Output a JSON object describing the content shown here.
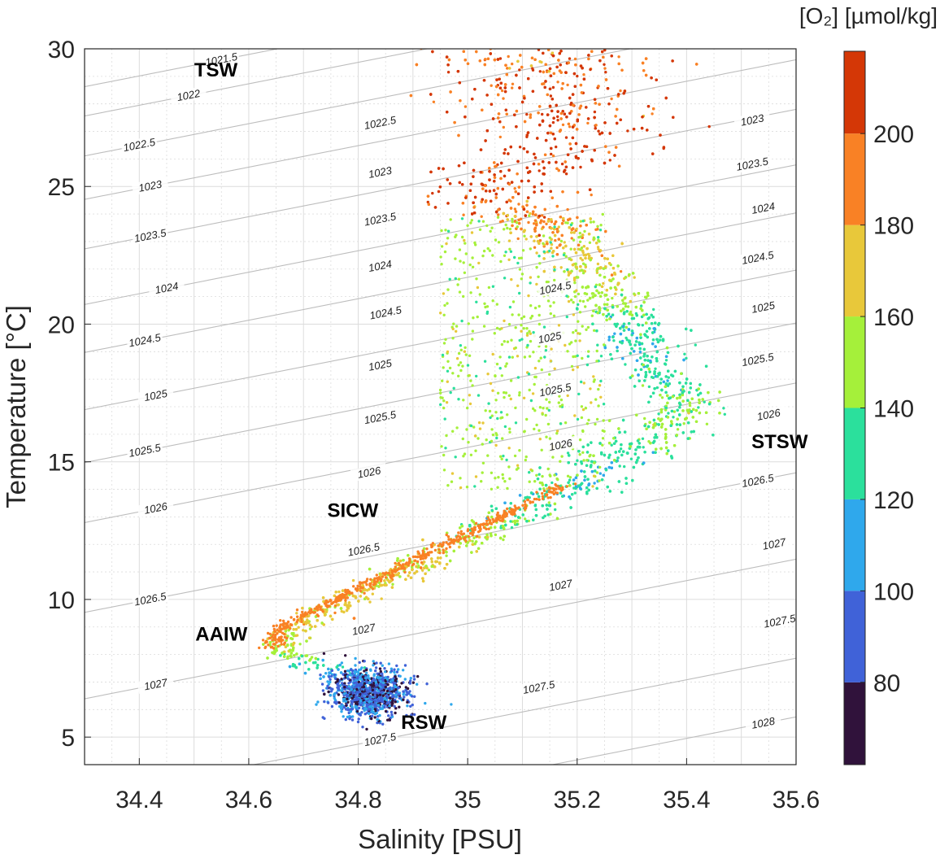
{
  "chart_data": {
    "type": "scatter",
    "xlabel": "Salinity [PSU]",
    "ylabel": "Temperature [°C]",
    "xlim": [
      34.3,
      35.6
    ],
    "ylim": [
      4,
      30
    ],
    "xticks": [
      "34.4",
      "34.6",
      "34.8",
      "35",
      "35.2",
      "35.4",
      "35.6"
    ],
    "yticks": [
      "5",
      "10",
      "15",
      "20",
      "25",
      "30"
    ],
    "grid": true,
    "colorbar": {
      "title": "[O₂] [µmol/kg]",
      "min": 62,
      "max": 218,
      "ticks": [
        "80",
        "100",
        "120",
        "140",
        "160",
        "180",
        "200"
      ],
      "levels": [
        {
          "from": 62,
          "to": 80,
          "color": "#30123b"
        },
        {
          "from": 80,
          "to": 100,
          "color": "#4062d8"
        },
        {
          "from": 100,
          "to": 120,
          "color": "#2fa8ec"
        },
        {
          "from": 120,
          "to": 140,
          "color": "#2be09c"
        },
        {
          "from": 140,
          "to": 160,
          "color": "#a5f03a"
        },
        {
          "from": 160,
          "to": 180,
          "color": "#e8c83a"
        },
        {
          "from": 180,
          "to": 200,
          "color": "#f98125"
        },
        {
          "from": 200,
          "to": 218,
          "color": "#d43706"
        }
      ]
    },
    "density_contours": [
      {
        "label": "1021.5",
        "at": [
          34.55,
          29.6
        ]
      },
      {
        "label": "1022",
        "at": [
          34.49,
          28.3
        ],
        "label2_at": [
          35.27,
          29.8
        ]
      },
      {
        "label": "1022.5",
        "at": [
          34.4,
          26.5
        ],
        "label2_at": [
          34.84,
          27.3
        ]
      },
      {
        "label": "1023",
        "at": [
          34.42,
          25.0
        ],
        "label2_at": [
          34.84,
          25.5
        ],
        "label3_at": [
          35.52,
          27.4
        ]
      },
      {
        "label": "1023.5",
        "at": [
          34.42,
          23.2
        ],
        "label2_at": [
          34.84,
          23.8
        ],
        "label3_at": [
          35.52,
          25.8
        ]
      },
      {
        "label": "1024",
        "at": [
          34.45,
          21.3
        ],
        "label2_at": [
          34.84,
          22.1
        ],
        "label3_at": [
          35.54,
          24.2
        ]
      },
      {
        "label": "1024.5",
        "at": [
          34.41,
          19.4
        ],
        "label2_at": [
          34.85,
          20.4
        ],
        "label3_at": [
          35.16,
          21.3
        ],
        "label4_at": [
          35.53,
          22.4
        ]
      },
      {
        "label": "1025",
        "at": [
          34.43,
          17.4
        ],
        "label2_at": [
          34.84,
          18.5
        ],
        "label3_at": [
          35.15,
          19.5
        ],
        "label4_at": [
          35.54,
          20.6
        ]
      },
      {
        "label": "1025.5",
        "at": [
          34.41,
          15.4
        ],
        "label2_at": [
          34.84,
          16.6
        ],
        "label3_at": [
          35.16,
          17.6
        ],
        "label4_at": [
          35.53,
          18.7
        ]
      },
      {
        "label": "1026",
        "at": [
          34.43,
          13.3
        ],
        "label2_at": [
          34.82,
          14.6
        ],
        "label3_at": [
          35.17,
          15.6
        ],
        "label4_at": [
          35.55,
          16.7
        ]
      },
      {
        "label": "1026.5",
        "at": [
          34.42,
          10.0
        ],
        "label2_at": [
          34.81,
          11.8
        ],
        "label3_at": [
          35.53,
          14.3
        ]
      },
      {
        "label": "1027",
        "at": [
          34.43,
          6.9
        ],
        "label2_at": [
          34.81,
          8.9
        ],
        "label3_at": [
          35.17,
          10.5
        ],
        "label4_at": [
          35.56,
          12.0
        ]
      },
      {
        "label": "1027.5",
        "at": [
          34.84,
          4.9
        ],
        "label2_at": [
          35.13,
          6.8
        ],
        "label3_at": [
          35.57,
          9.2
        ]
      },
      {
        "label": "1028",
        "at": [
          35.54,
          5.5
        ]
      }
    ],
    "water_masses": [
      {
        "label": "TSW",
        "s": 34.54,
        "t": 29.0,
        "o2": 190
      },
      {
        "label": "STSW",
        "s": 35.57,
        "t": 15.5,
        "o2": 150
      },
      {
        "label": "SICW",
        "s": 34.79,
        "t": 13.0,
        "o2": 168
      },
      {
        "label": "AAIW",
        "s": 34.55,
        "t": 8.5,
        "o2": 165
      },
      {
        "label": "RSW",
        "s": 34.92,
        "t": 5.3,
        "o2": 85
      }
    ]
  }
}
